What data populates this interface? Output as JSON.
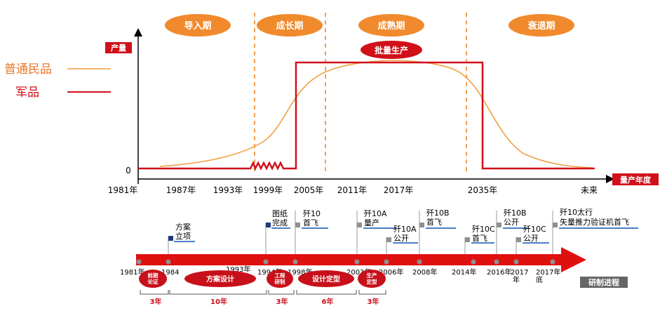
{
  "colors": {
    "civil": "#f0a040",
    "military": "#d0101a",
    "phase_pill": "#f08a2c",
    "arrow": "#e01010",
    "flag": "#1e3a78",
    "underline": "#4a7fc4",
    "dot": "#909090",
    "badge_grey": "#666666"
  },
  "legend": [
    {
      "label": "普通民品",
      "series": "civil"
    },
    {
      "label": "军品",
      "series": "military"
    }
  ],
  "phases": [
    "导入期",
    "成长期",
    "成熟期",
    "衰退期"
  ],
  "badge": "批量生产",
  "axes": {
    "y_title": "产量",
    "y_zero": "0",
    "x_title": "量产年度",
    "x_ticks": [
      "1981年",
      "1987年",
      "1993年",
      "1999年",
      "2005年",
      "2011年",
      "2017年",
      "2035年",
      "未来"
    ]
  },
  "timeline": {
    "milestones": [
      {
        "text": [
          "方案",
          "立项"
        ],
        "flag": true
      },
      {
        "text": [
          "图纸",
          "完成"
        ],
        "flag": true
      },
      {
        "text": [
          "歼10",
          "首飞"
        ],
        "flag": false
      },
      {
        "text": [
          "歼10A",
          "量产"
        ],
        "flag": false
      },
      {
        "text": [
          "歼10A",
          "公开"
        ],
        "flag": false
      },
      {
        "text": [
          "歼10B",
          "首飞"
        ],
        "flag": false
      },
      {
        "text": [
          "歼10C",
          "首飞"
        ],
        "flag": false
      },
      {
        "text": [
          "歼10B",
          "公开"
        ],
        "flag": false
      },
      {
        "text": [
          "歼10C",
          "公开"
        ],
        "flag": false
      },
      {
        "text": [
          "歼10太行",
          "矢量推力验证机首飞"
        ],
        "flag": false
      }
    ],
    "years": [
      "1981年",
      "1984",
      "1993年",
      "1994年",
      "1998年",
      "2003年",
      "2006年",
      "2008年",
      "2014年",
      "2016年",
      "2017",
      "年",
      "2017年",
      "底"
    ],
    "stages": [
      "前期\n论证",
      "方案设计",
      "工程\n研制",
      "设计定型",
      "生产\n定型"
    ],
    "durations": [
      "3年",
      "10年",
      "3年",
      "6年",
      "3年"
    ],
    "label": "研制进程"
  }
}
